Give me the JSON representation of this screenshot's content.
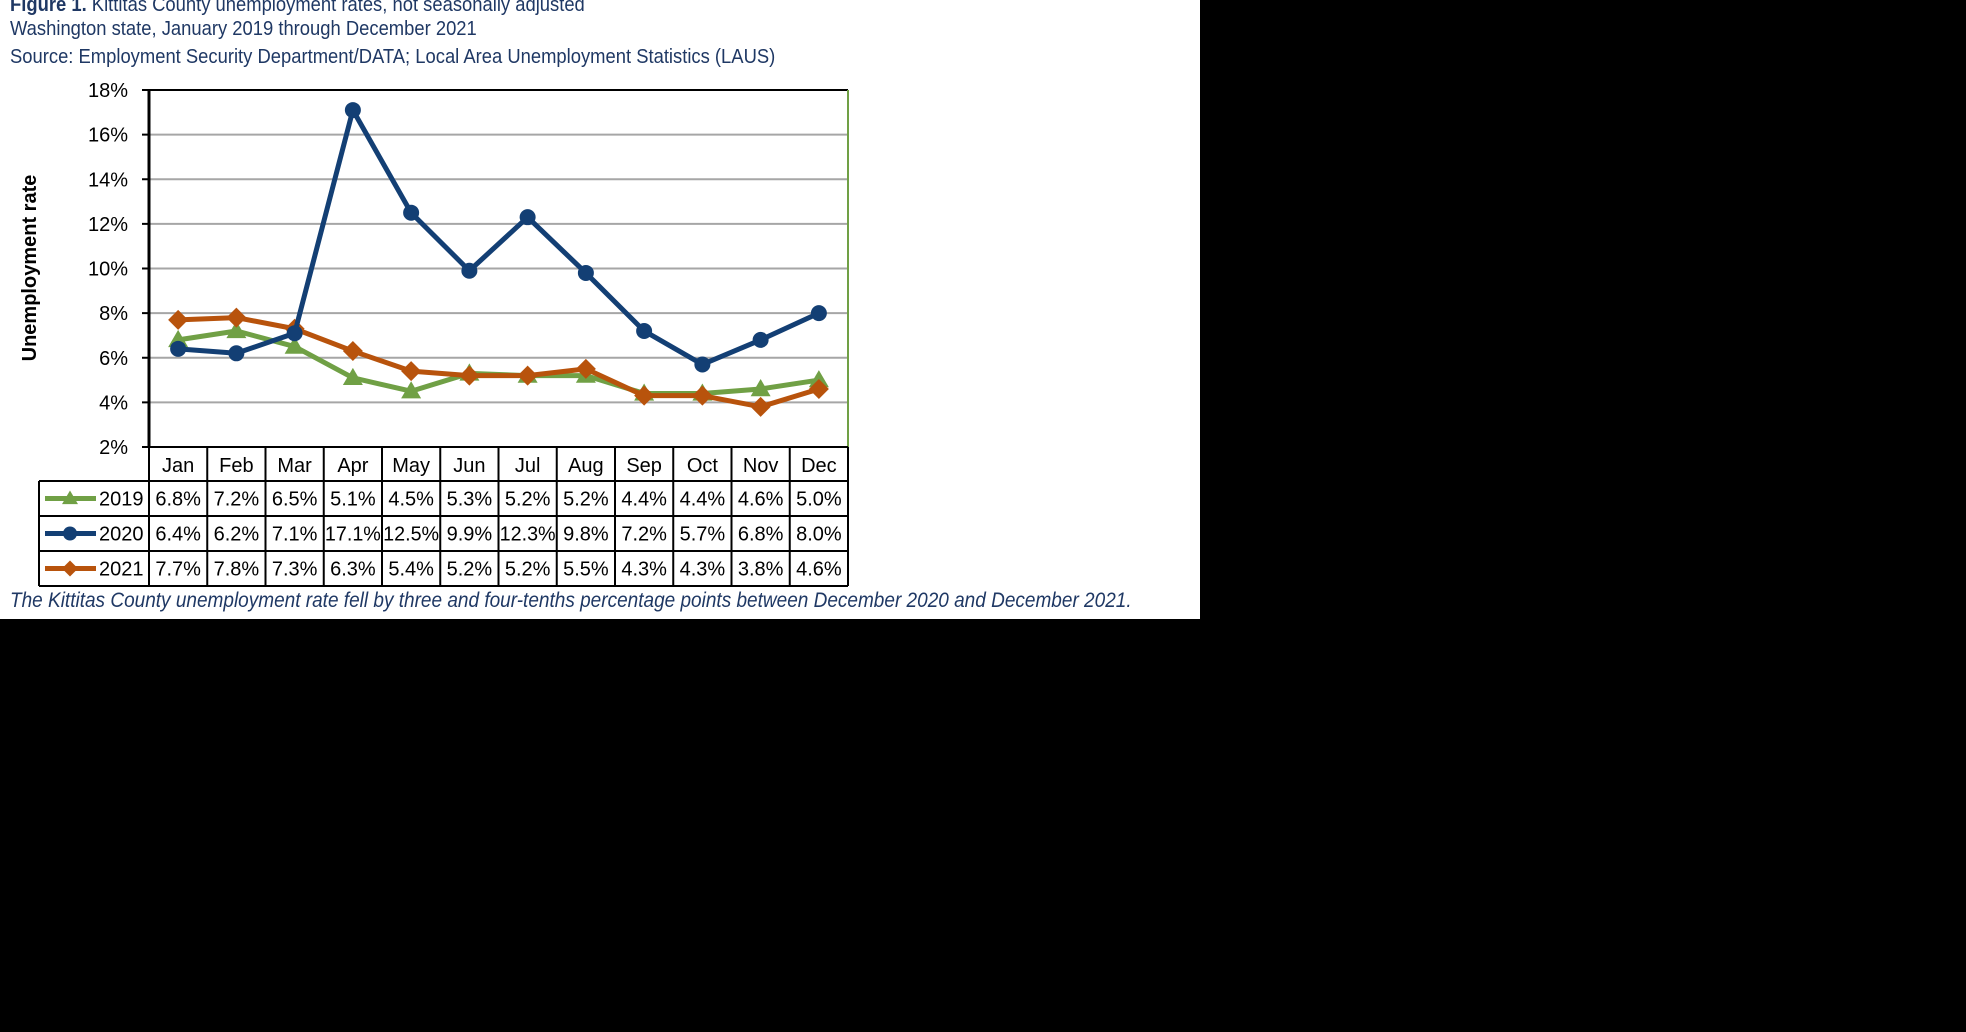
{
  "figure": {
    "label": "Figure 1.",
    "title": "Kittitas County unemployment rates, not seasonally adjusted",
    "subtitle": "Washington state, January 2019 through December 2021",
    "source": "Source: Employment Security Department/DATA; Local Area Unemployment Statistics (LAUS)",
    "caption": "The Kittitas County unemployment rate fell by three and four-tenths percentage points between December 2020 and December 2021."
  },
  "colors": {
    "2019": "#70a045",
    "2020": "#133f74",
    "2021": "#b8530c",
    "text": "#1f3864",
    "grid": "#a6a6a6"
  },
  "chart_data": {
    "type": "line",
    "title": "Kittitas County unemployment rates, not seasonally adjusted",
    "subtitle": "Washington state, January 2019 through December 2021",
    "xlabel": "",
    "ylabel": "Unemployment rate",
    "ylim": [
      2,
      18
    ],
    "yticks": [
      "2%",
      "4%",
      "6%",
      "8%",
      "10%",
      "12%",
      "14%",
      "16%",
      "18%"
    ],
    "grid": true,
    "legend_position": "data-table",
    "categories": [
      "Jan",
      "Feb",
      "Mar",
      "Apr",
      "May",
      "Jun",
      "Jul",
      "Aug",
      "Sep",
      "Oct",
      "Nov",
      "Dec"
    ],
    "series": [
      {
        "name": "2019",
        "marker": "triangle",
        "values": [
          6.8,
          7.2,
          6.5,
          5.1,
          4.5,
          5.3,
          5.2,
          5.2,
          4.4,
          4.4,
          4.6,
          5.0
        ],
        "labels": [
          "6.8%",
          "7.2%",
          "6.5%",
          "5.1%",
          "4.5%",
          "5.3%",
          "5.2%",
          "5.2%",
          "4.4%",
          "4.4%",
          "4.6%",
          "5.0%"
        ]
      },
      {
        "name": "2020",
        "marker": "circle",
        "values": [
          6.4,
          6.2,
          7.1,
          17.1,
          12.5,
          9.9,
          12.3,
          9.8,
          7.2,
          5.7,
          6.8,
          8.0
        ],
        "labels": [
          "6.4%",
          "6.2%",
          "7.1%",
          "17.1%",
          "12.5%",
          "9.9%",
          "12.3%",
          "9.8%",
          "7.2%",
          "5.7%",
          "6.8%",
          "8.0%"
        ]
      },
      {
        "name": "2021",
        "marker": "diamond",
        "values": [
          7.7,
          7.8,
          7.3,
          6.3,
          5.4,
          5.2,
          5.2,
          5.5,
          4.3,
          4.3,
          3.8,
          4.6
        ],
        "labels": [
          "7.7%",
          "7.8%",
          "7.3%",
          "6.3%",
          "5.4%",
          "5.2%",
          "5.2%",
          "5.5%",
          "4.3%",
          "4.3%",
          "3.8%",
          "4.6%"
        ]
      }
    ]
  }
}
